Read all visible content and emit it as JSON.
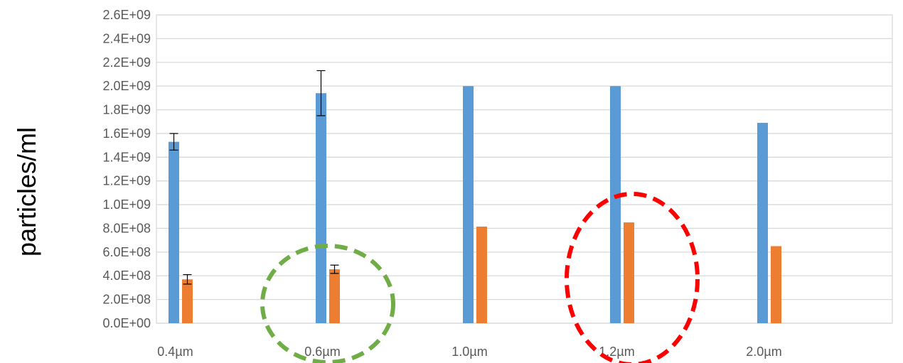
{
  "chart_data": {
    "type": "bar",
    "title": "",
    "xlabel": "",
    "ylabel": "particles/ml",
    "ylim": [
      0,
      2600000000
    ],
    "y_tick_step": 200000000,
    "y_tick_labels": [
      "0.0E+00",
      "2.0E+08",
      "4.0E+08",
      "6.0E+08",
      "8.0E+08",
      "1.0E+09",
      "1.2E+09",
      "1.4E+09",
      "1.6E+09",
      "1.8E+09",
      "2.0E+09",
      "2.2E+09",
      "2.4E+09",
      "2.6E+09"
    ],
    "categories": [
      "0.4µm",
      "0.6µm",
      "1.0µm",
      "1.2µm",
      "2.0µm"
    ],
    "grid": true,
    "legend": "none",
    "series": [
      {
        "color": "#5b9bd5",
        "values": [
          1530000000,
          1940000000,
          2000000000,
          2000000000,
          1690000000
        ],
        "error": [
          70000000,
          190000000,
          null,
          null,
          null
        ]
      },
      {
        "color": "#ed7d31",
        "values": [
          370000000,
          455000000,
          815000000,
          850000000,
          650000000
        ],
        "error": [
          40000000,
          35000000,
          null,
          null,
          null
        ]
      }
    ],
    "annotations": [
      {
        "shape": "dashed-ellipse",
        "color": "#70ad47",
        "around_category": "0.6µm"
      },
      {
        "shape": "dashed-ellipse",
        "color": "#ff0000",
        "around_category": "1.2µm"
      }
    ]
  }
}
